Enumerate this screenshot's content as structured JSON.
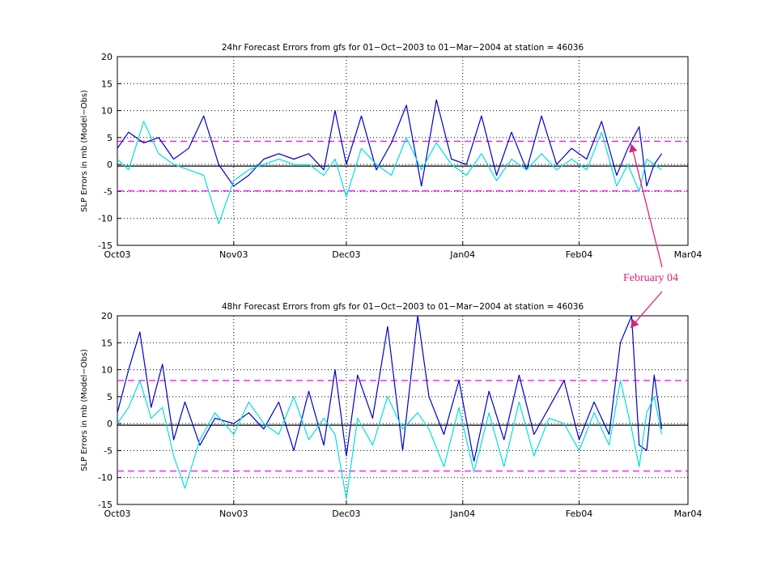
{
  "chart_data": [
    {
      "type": "line",
      "title": "24hr Forecast Errors from gfs for 01−Oct−2003 to 01−Mar−2004 at station = 46036",
      "xlabel": "",
      "ylabel": "SLP Errors in mb (Model−Obs)",
      "xlim": [
        "2003-10-01",
        "2004-03-01"
      ],
      "ylim": [
        -15,
        20
      ],
      "yticks": [
        -15,
        -10,
        -5,
        0,
        5,
        10,
        15,
        20
      ],
      "xticks": [
        {
          "date": "2003-10-01",
          "label": "Oct03"
        },
        {
          "date": "2003-11-01",
          "label": "Nov03"
        },
        {
          "date": "2003-12-01",
          "label": "Dec03"
        },
        {
          "date": "2004-01-01",
          "label": "Jan04"
        },
        {
          "date": "2004-02-01",
          "label": "Feb04"
        },
        {
          "date": "2004-03-01",
          "label": "Mar04"
        }
      ],
      "grid": true,
      "reference_lines": [
        {
          "y": 4.3,
          "style": "dashed",
          "color": "#ff00ff"
        },
        {
          "y": -4.9,
          "style": "dashed",
          "color": "#ff00ff"
        },
        {
          "y": -0.3,
          "style": "solid",
          "color": "#000000"
        }
      ],
      "series": [
        {
          "color": "#0000cc",
          "x": [
            "2003-10-01",
            "2003-10-04",
            "2003-10-08",
            "2003-10-12",
            "2003-10-16",
            "2003-10-20",
            "2003-10-24",
            "2003-10-28",
            "2003-11-01",
            "2003-11-05",
            "2003-11-09",
            "2003-11-13",
            "2003-11-17",
            "2003-11-21",
            "2003-11-25",
            "2003-11-28",
            "2003-12-01",
            "2003-12-05",
            "2003-12-09",
            "2003-12-13",
            "2003-12-17",
            "2003-12-21",
            "2003-12-25",
            "2003-12-29",
            "2004-01-02",
            "2004-01-06",
            "2004-01-10",
            "2004-01-14",
            "2004-01-18",
            "2004-01-22",
            "2004-01-26",
            "2004-01-30",
            "2004-02-03",
            "2004-02-07",
            "2004-02-11",
            "2004-02-14",
            "2004-02-17",
            "2004-02-19",
            "2004-02-21",
            "2004-02-23"
          ],
          "y": [
            3,
            6,
            4,
            5,
            1,
            3,
            9,
            0,
            -4,
            -2,
            1,
            2,
            1,
            2,
            -1,
            10,
            0,
            9,
            -1,
            4,
            11,
            -4,
            12,
            1,
            0,
            9,
            -2,
            6,
            -1,
            9,
            0,
            3,
            1,
            8,
            -2,
            3,
            7,
            -4,
            0,
            2
          ]
        },
        {
          "color": "#00e0e0",
          "x": [
            "2003-10-01",
            "2003-10-04",
            "2003-10-08",
            "2003-10-12",
            "2003-10-16",
            "2003-10-20",
            "2003-10-24",
            "2003-10-28",
            "2003-11-01",
            "2003-11-05",
            "2003-11-09",
            "2003-11-13",
            "2003-11-17",
            "2003-11-21",
            "2003-11-25",
            "2003-11-28",
            "2003-12-01",
            "2003-12-05",
            "2003-12-09",
            "2003-12-13",
            "2003-12-17",
            "2003-12-21",
            "2003-12-25",
            "2003-12-29",
            "2004-01-02",
            "2004-01-06",
            "2004-01-10",
            "2004-01-14",
            "2004-01-18",
            "2004-01-22",
            "2004-01-26",
            "2004-01-30",
            "2004-02-03",
            "2004-02-07",
            "2004-02-11",
            "2004-02-14",
            "2004-02-17",
            "2004-02-19",
            "2004-02-21",
            "2004-02-23"
          ],
          "y": [
            1,
            -1,
            8,
            2,
            0,
            -1,
            -2,
            -11,
            -3,
            -1,
            0,
            1,
            0,
            0,
            -2,
            1,
            -6,
            3,
            0,
            -2,
            5,
            -1,
            4,
            0,
            -2,
            2,
            -3,
            1,
            -1,
            2,
            -1,
            1,
            -1,
            6,
            -4,
            0,
            -5,
            1,
            0,
            -1
          ]
        }
      ]
    },
    {
      "type": "line",
      "title": "48hr Forecast Errors from gfs for 01−Oct−2003 to 01−Mar−2004 at station = 46036",
      "xlabel": "",
      "ylabel": "SLP Errors in mb (Model−Obs)",
      "xlim": [
        "2003-10-01",
        "2004-03-01"
      ],
      "ylim": [
        -15,
        20
      ],
      "yticks": [
        -15,
        -10,
        -5,
        0,
        5,
        10,
        15,
        20
      ],
      "xticks": [
        {
          "date": "2003-10-01",
          "label": "Oct03"
        },
        {
          "date": "2003-11-01",
          "label": "Nov03"
        },
        {
          "date": "2003-12-01",
          "label": "Dec03"
        },
        {
          "date": "2004-01-01",
          "label": "Jan04"
        },
        {
          "date": "2004-02-01",
          "label": "Feb04"
        },
        {
          "date": "2004-03-01",
          "label": "Mar04"
        }
      ],
      "grid": true,
      "reference_lines": [
        {
          "y": 8,
          "style": "dashed",
          "color": "#ff00ff"
        },
        {
          "y": -8.8,
          "style": "dashed",
          "color": "#ff00ff"
        },
        {
          "y": -0.3,
          "style": "solid",
          "color": "#000000"
        }
      ],
      "series": [
        {
          "color": "#0000cc",
          "x": [
            "2003-10-01",
            "2003-10-04",
            "2003-10-07",
            "2003-10-10",
            "2003-10-13",
            "2003-10-16",
            "2003-10-19",
            "2003-10-23",
            "2003-10-27",
            "2003-11-01",
            "2003-11-05",
            "2003-11-09",
            "2003-11-13",
            "2003-11-17",
            "2003-11-21",
            "2003-11-25",
            "2003-11-28",
            "2003-12-01",
            "2003-12-04",
            "2003-12-08",
            "2003-12-12",
            "2003-12-16",
            "2003-12-20",
            "2003-12-23",
            "2003-12-27",
            "2003-12-31",
            "2004-01-04",
            "2004-01-08",
            "2004-01-12",
            "2004-01-16",
            "2004-01-20",
            "2004-01-24",
            "2004-01-28",
            "2004-02-01",
            "2004-02-05",
            "2004-02-09",
            "2004-02-12",
            "2004-02-15",
            "2004-02-17",
            "2004-02-19",
            "2004-02-21",
            "2004-02-23"
          ],
          "y": [
            2,
            10,
            17,
            3,
            11,
            -3,
            4,
            -4,
            1,
            0,
            2,
            -1,
            4,
            -5,
            6,
            -4,
            10,
            -6,
            9,
            1,
            18,
            -5,
            20,
            5,
            -2,
            8,
            -7,
            6,
            -3,
            9,
            -2,
            3,
            8,
            -3,
            4,
            -2,
            15,
            20,
            -4,
            -5,
            9,
            -1
          ]
        },
        {
          "color": "#00e0e0",
          "x": [
            "2003-10-01",
            "2003-10-04",
            "2003-10-07",
            "2003-10-10",
            "2003-10-13",
            "2003-10-16",
            "2003-10-19",
            "2003-10-23",
            "2003-10-27",
            "2003-11-01",
            "2003-11-05",
            "2003-11-09",
            "2003-11-13",
            "2003-11-17",
            "2003-11-21",
            "2003-11-25",
            "2003-11-28",
            "2003-12-01",
            "2003-12-04",
            "2003-12-08",
            "2003-12-12",
            "2003-12-16",
            "2003-12-20",
            "2003-12-23",
            "2003-12-27",
            "2003-12-31",
            "2004-01-04",
            "2004-01-08",
            "2004-01-12",
            "2004-01-16",
            "2004-01-20",
            "2004-01-24",
            "2004-01-28",
            "2004-02-01",
            "2004-02-05",
            "2004-02-09",
            "2004-02-12",
            "2004-02-15",
            "2004-02-17",
            "2004-02-19",
            "2004-02-21",
            "2004-02-23"
          ],
          "y": [
            0,
            3,
            8,
            1,
            3,
            -6,
            -12,
            -3,
            2,
            -2,
            4,
            0,
            -2,
            5,
            -3,
            1,
            -2,
            -14,
            1,
            -4,
            5,
            -1,
            2,
            -1,
            -8,
            3,
            -9,
            2,
            -8,
            4,
            -6,
            1,
            0,
            -5,
            2,
            -4,
            8,
            -1,
            -8,
            2,
            5,
            -2
          ]
        }
      ]
    }
  ],
  "annotation": {
    "text": "February 04",
    "color": "#e0217a",
    "targets": [
      {
        "chart": 0,
        "date": "2004-02-15",
        "y": 3.5
      },
      {
        "chart": 1,
        "date": "2004-02-15",
        "y": 18
      }
    ]
  }
}
